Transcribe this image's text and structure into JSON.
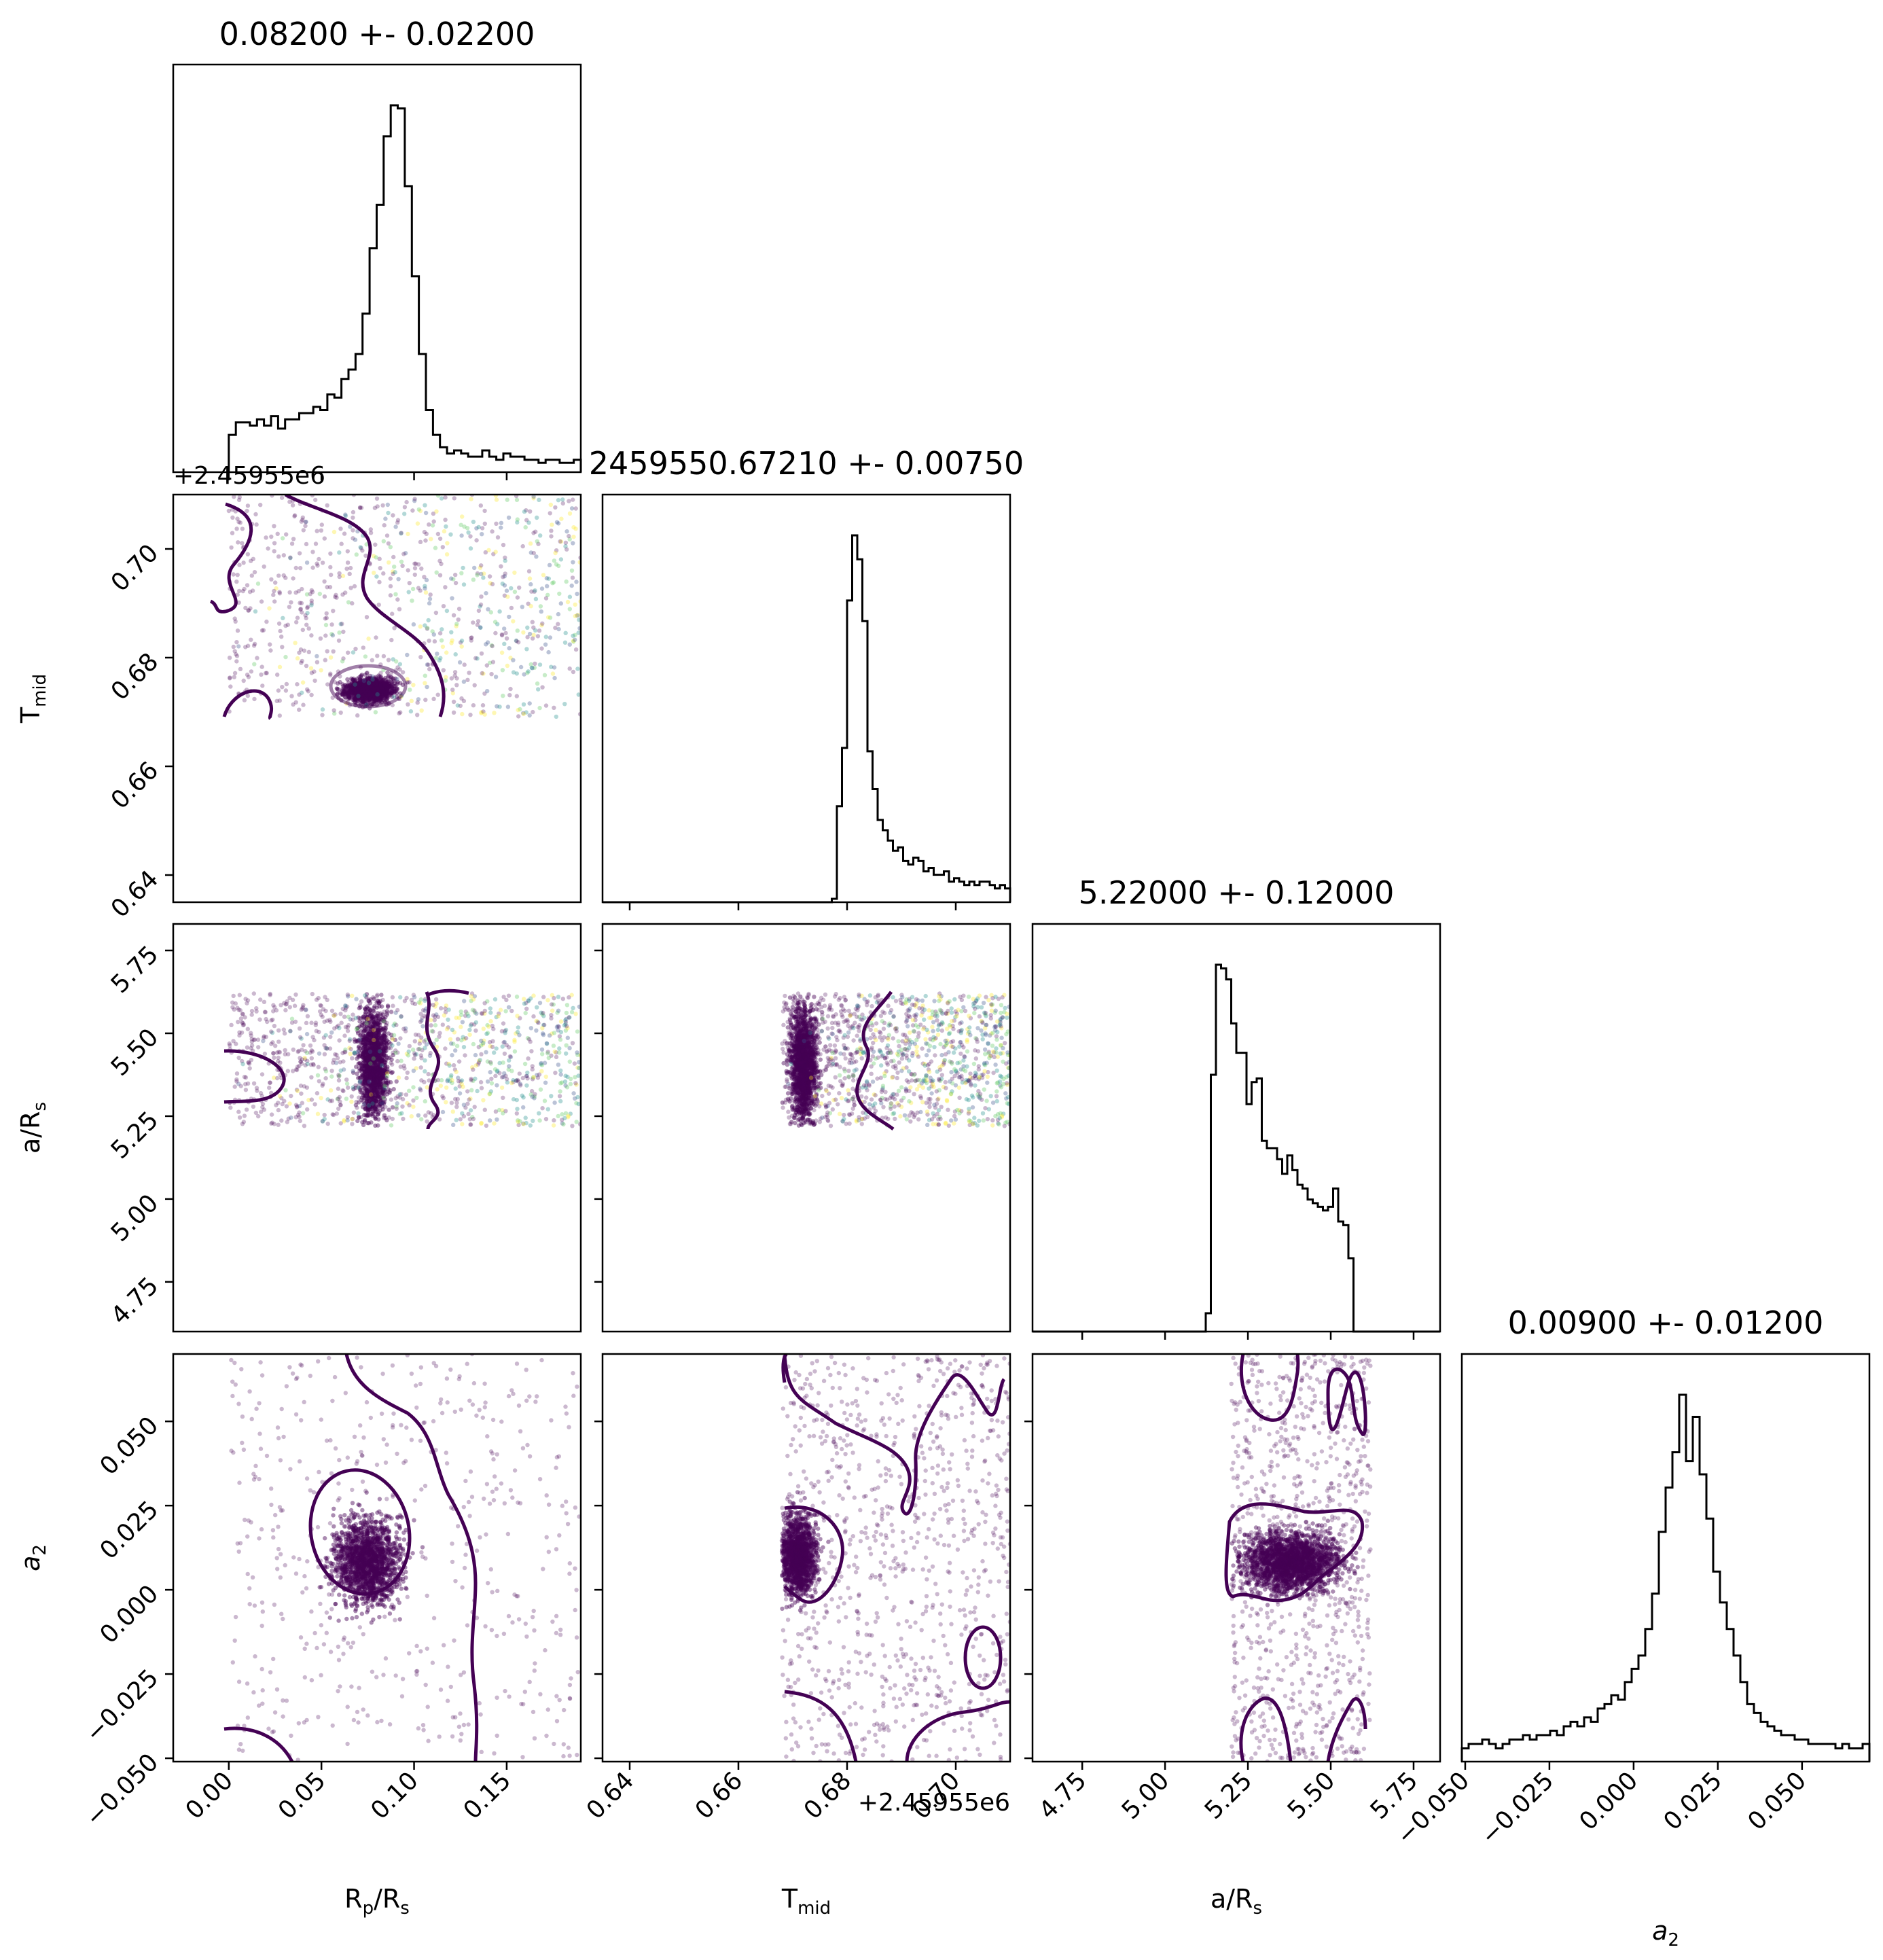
{
  "chart_data": {
    "type": "scatter",
    "kind": "corner-plot",
    "colormap": "viridis",
    "parameters": [
      {
        "key": "rp",
        "title": "0.08200 +- 0.02200",
        "axis_label": "R",
        "axis_label_sub": "p",
        "axis_label_tail": "/R",
        "axis_label_sub2": "s",
        "range": [
          -0.03,
          0.19
        ],
        "ticks": [
          0.0,
          0.05,
          0.1,
          0.15
        ],
        "tick_labels": [
          "0.00",
          "0.05",
          "0.10",
          "0.15"
        ],
        "offset": "",
        "hist": {
          "edges": [
            0.0,
            0.19
          ],
          "counts": [
            12,
            16,
            16,
            15,
            17,
            15,
            18,
            14,
            17,
            17,
            19,
            19,
            21,
            20,
            25,
            24,
            30,
            33,
            38,
            51,
            72,
            86,
            108,
            118,
            117,
            92,
            63,
            38,
            20,
            12,
            8,
            6,
            7,
            6,
            5,
            5,
            7,
            5,
            4,
            6,
            5,
            5,
            4,
            4,
            3,
            4,
            4,
            3,
            3,
            4
          ]
        }
      },
      {
        "key": "tmid",
        "title": "2459550.67210 +- 0.00750",
        "axis_label": "T",
        "axis_label_sub": "mid",
        "axis_label_tail": "",
        "axis_label_sub2": "",
        "range": [
          0.635,
          0.71
        ],
        "ticks": [
          0.64,
          0.66,
          0.68,
          0.7
        ],
        "tick_labels": [
          "0.64",
          "0.66",
          "0.68",
          "0.70"
        ],
        "offset": "+2.45955e6",
        "hist": {
          "edges": [
            0.635,
            0.71
          ],
          "counts": [
            0,
            0,
            0,
            0,
            0,
            0,
            0,
            0,
            0,
            0,
            0,
            0,
            0,
            0,
            0,
            0,
            0,
            0,
            0,
            0,
            0,
            0,
            0,
            0,
            0,
            0,
            0,
            0,
            0,
            0,
            0,
            0,
            0,
            0,
            0,
            0,
            0,
            0,
            0,
            0,
            0,
            0,
            0,
            0,
            0,
            1,
            28,
            45,
            88,
            107,
            100,
            82,
            44,
            33,
            24,
            21,
            18,
            15,
            16,
            12,
            11,
            13,
            12,
            9,
            10,
            8,
            8,
            9,
            6,
            7,
            6,
            5,
            6,
            5,
            6,
            6,
            5,
            4,
            5,
            4
          ]
        }
      },
      {
        "key": "ars",
        "title": "5.22000 +- 0.12000",
        "axis_label": "a/R",
        "axis_label_sub": "s",
        "axis_label_tail": "",
        "axis_label_sub2": "",
        "range": [
          4.6,
          5.83
        ],
        "ticks": [
          4.75,
          5.0,
          5.25,
          5.5,
          5.75
        ],
        "tick_labels": [
          "4.75",
          "5.00",
          "5.25",
          "5.50",
          "5.75"
        ],
        "offset": "",
        "hist": {
          "edges": [
            4.6,
            5.83
          ],
          "counts": [
            0,
            0,
            0,
            0,
            0,
            0,
            0,
            0,
            0,
            0,
            0,
            0,
            0,
            0,
            0,
            0,
            0,
            0,
            0,
            0,
            0,
            0,
            0,
            0,
            0,
            0,
            0,
            0,
            0,
            0,
            0,
            0,
            0,
            0,
            5,
            70,
            100,
            99,
            96,
            84,
            76,
            76,
            62,
            68,
            69,
            52,
            50,
            50,
            47,
            43,
            48,
            44,
            40,
            39,
            36,
            35,
            34,
            33,
            34,
            39,
            30,
            29,
            20,
            0,
            0,
            0,
            0,
            0,
            0,
            0,
            0,
            0,
            0,
            0,
            0,
            0,
            0,
            0,
            0,
            0
          ]
        }
      },
      {
        "key": "a2",
        "title": "0.00900 +- 0.01200",
        "axis_label": "a",
        "axis_label_sub": "2",
        "axis_label_tail": "",
        "axis_label_sub2": "",
        "range": [
          -0.051,
          0.07
        ],
        "ticks": [
          -0.05,
          -0.025,
          0.0,
          0.025,
          0.05
        ],
        "tick_labels": [
          "−0.050",
          "−0.025",
          "0.000",
          "0.025",
          "0.050"
        ],
        "offset": "",
        "hist": {
          "edges": [
            -0.051,
            0.07
          ],
          "counts": [
            3,
            4,
            4,
            5,
            4,
            3,
            4,
            5,
            5,
            6,
            5,
            6,
            6,
            7,
            6,
            8,
            9,
            8,
            10,
            9,
            12,
            13,
            15,
            14,
            18,
            21,
            24,
            30,
            38,
            52,
            62,
            70,
            83,
            68,
            78,
            65,
            55,
            43,
            36,
            30,
            24,
            18,
            13,
            11,
            9,
            8,
            7,
            6,
            6,
            5,
            5,
            4,
            4,
            4,
            4,
            3,
            4,
            3,
            3,
            4
          ]
        }
      }
    ]
  }
}
